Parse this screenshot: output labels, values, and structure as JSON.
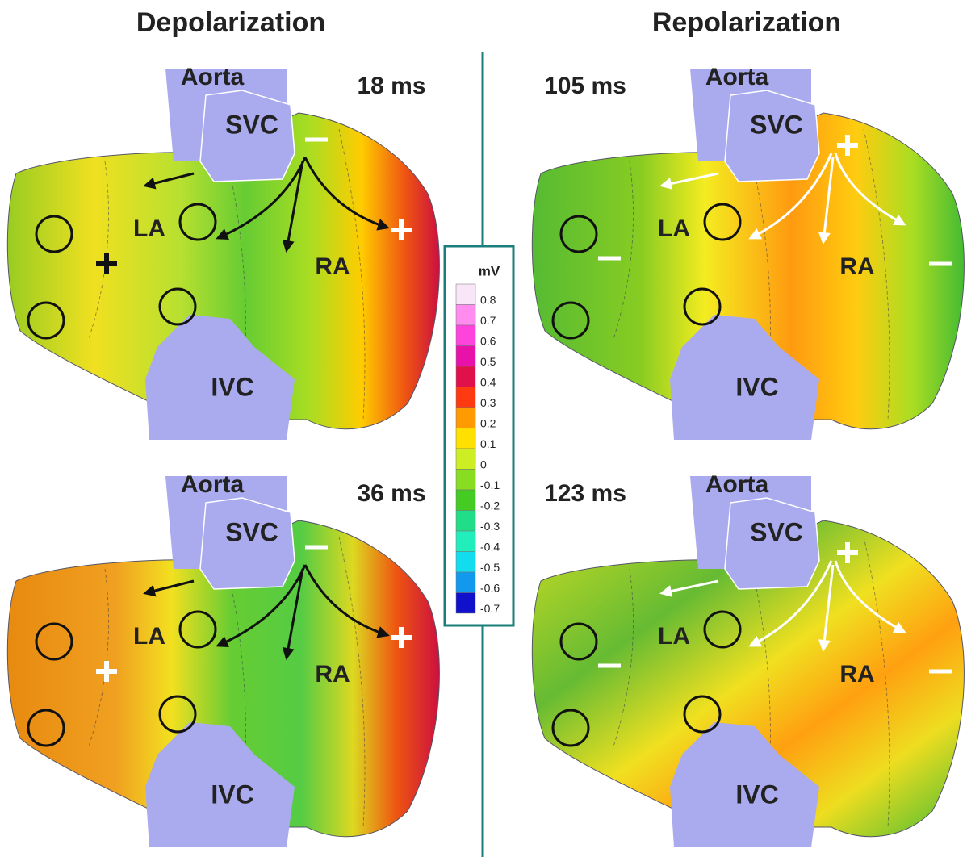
{
  "headings": [
    "Depolarization",
    "Repolarization"
  ],
  "panels": [
    {
      "time": "18 ms",
      "aorta": "Aorta",
      "svc": "SVC",
      "ivc": "IVC",
      "la": "LA",
      "ra": "RA"
    },
    {
      "time": "105 ms",
      "aorta": "Aorta",
      "svc": "SVC",
      "ivc": "IVC",
      "la": "LA",
      "ra": "RA"
    },
    {
      "time": "36 ms",
      "aorta": "Aorta",
      "svc": "SVC",
      "ivc": "IVC",
      "la": "LA",
      "ra": "RA"
    },
    {
      "time": "123 ms",
      "aorta": "Aorta",
      "svc": "SVC",
      "ivc": "IVC",
      "la": "LA",
      "ra": "RA"
    }
  ],
  "colorbar": {
    "unit": "mV",
    "levels": [
      {
        "value": 0.8,
        "color": "#f8e6f8"
      },
      {
        "value": 0.7,
        "color": "#ff8cee"
      },
      {
        "value": 0.6,
        "color": "#ff44dd"
      },
      {
        "value": 0.5,
        "color": "#e811aa"
      },
      {
        "value": 0.4,
        "color": "#e0104a"
      },
      {
        "value": 0.3,
        "color": "#ff3a10"
      },
      {
        "value": 0.2,
        "color": "#ff9a00"
      },
      {
        "value": 0.1,
        "color": "#ffe000"
      },
      {
        "value": 0,
        "color": "#ccee22"
      },
      {
        "value": -0.1,
        "color": "#88dd22"
      },
      {
        "value": -0.2,
        "color": "#44cc22"
      },
      {
        "value": -0.3,
        "color": "#22dd88"
      },
      {
        "value": -0.4,
        "color": "#22eebb"
      },
      {
        "value": -0.5,
        "color": "#11ddee"
      },
      {
        "value": -0.6,
        "color": "#1199ee"
      },
      {
        "value": -0.7,
        "color": "#1111cc"
      }
    ]
  }
}
